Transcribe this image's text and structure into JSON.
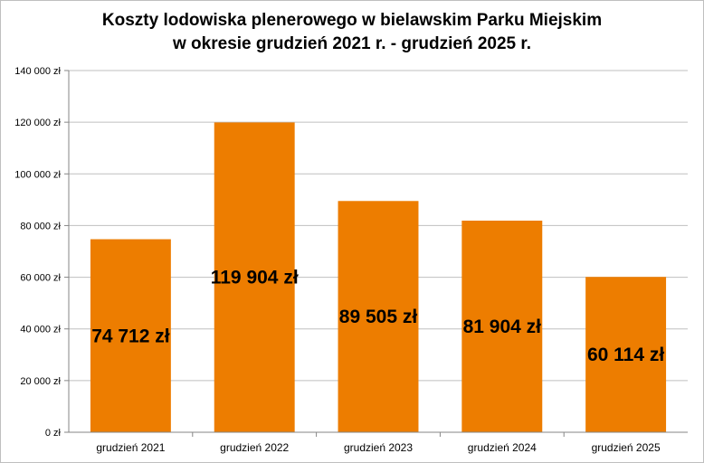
{
  "chart_data": {
    "type": "bar",
    "title_lines": [
      "Koszty lodowiska plenerowego w bielawskim Parku Miejskim",
      "w okresie grudzień 2021 r. - grudzień 2025 r."
    ],
    "categories": [
      "grudzień 2021",
      "grudzień 2022",
      "grudzień 2023",
      "grudzień 2024",
      "grudzień 2025"
    ],
    "values": [
      74712,
      119904,
      89505,
      81904,
      60114
    ],
    "data_labels": [
      "74 712 zł",
      "119 904 zł",
      "89 505 zł",
      "81 904 zł",
      "60 114 zł"
    ],
    "yticks": [
      0,
      20000,
      40000,
      60000,
      80000,
      100000,
      120000,
      140000
    ],
    "ytick_labels": [
      "0 zł",
      "20 000 zł",
      "40 000 zł",
      "60 000 zł",
      "80 000 zł",
      "100 000 zł",
      "120 000 zł",
      "140 000 zł"
    ],
    "ylim": [
      0,
      140000
    ],
    "xlabel": "",
    "ylabel": "",
    "grid": true,
    "legend": "none",
    "bar_color": "#ED7D00",
    "grid_color": "#bfbfbf"
  }
}
